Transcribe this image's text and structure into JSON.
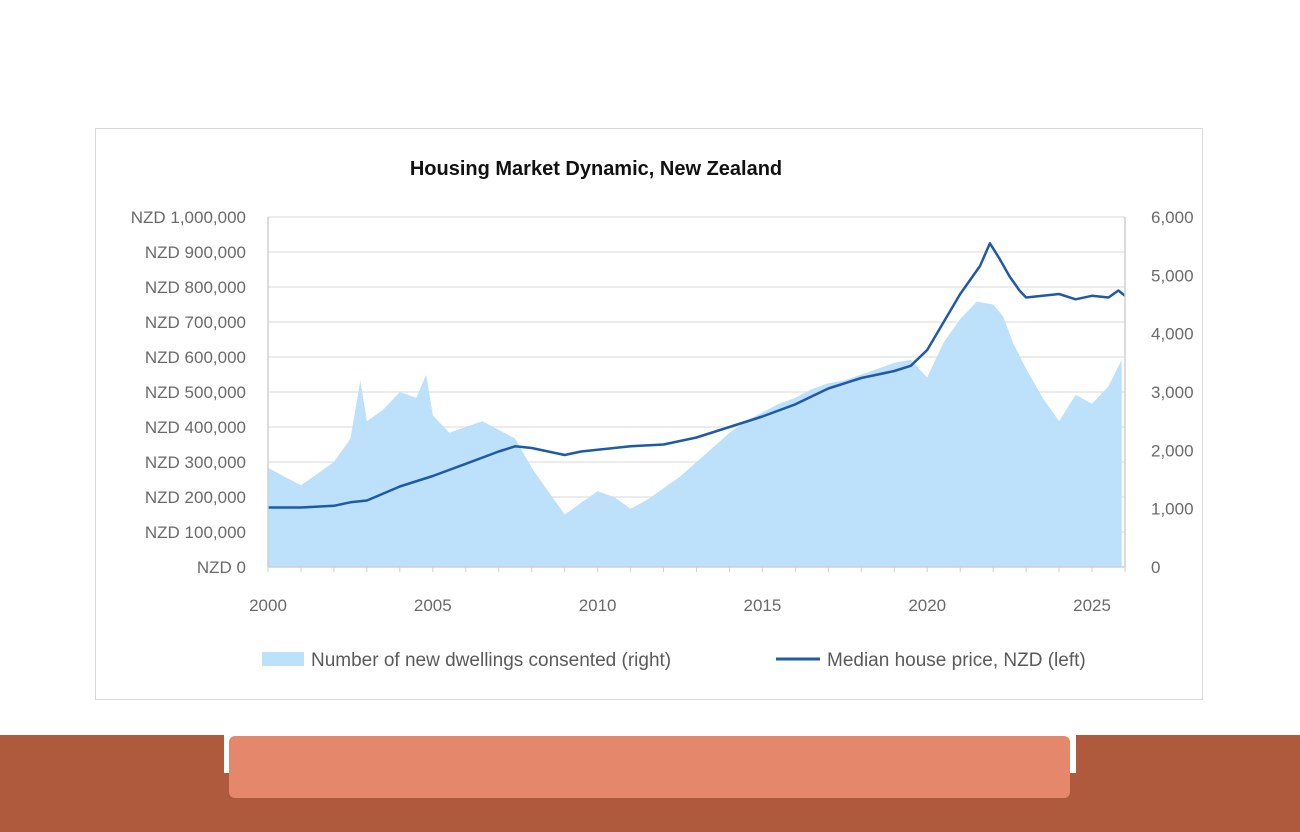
{
  "chart_data": {
    "type": "area+line",
    "title": "Housing Market Dynamic, New Zealand",
    "x_ticks": [
      "2000",
      "2005",
      "2010",
      "2015",
      "2020",
      "2025"
    ],
    "xlim": [
      2000,
      2026
    ],
    "y_left_ticks": [
      "NZD 0",
      "NZD 100,000",
      "NZD 200,000",
      "NZD 300,000",
      "NZD 400,000",
      "NZD 500,000",
      "NZD 600,000",
      "NZD 700,000",
      "NZD 800,000",
      "NZD 900,000",
      "NZD 1,000,000"
    ],
    "y_left_lim": [
      0,
      1000000
    ],
    "y_right_ticks": [
      "0",
      "1,000",
      "2,000",
      "3,000",
      "4,000",
      "5,000",
      "6,000"
    ],
    "y_right_lim": [
      0,
      6000
    ],
    "grid": true,
    "legend_position": "bottom",
    "series": [
      {
        "name": "Number of new dwellings consented (right)",
        "type": "area",
        "axis": "right",
        "color": "#bde0fb",
        "x": [
          2000,
          2000.5,
          2001,
          2001.5,
          2002,
          2002.5,
          2002.8,
          2003,
          2003.5,
          2004,
          2004.5,
          2004.8,
          2005,
          2005.5,
          2006,
          2006.5,
          2007,
          2007.5,
          2008,
          2008.5,
          2009,
          2009.5,
          2010,
          2010.5,
          2011,
          2011.5,
          2012,
          2012.5,
          2013,
          2013.5,
          2014,
          2014.5,
          2015,
          2015.5,
          2016,
          2016.5,
          2017,
          2017.5,
          2018,
          2018.5,
          2019,
          2019.5,
          2020,
          2020.5,
          2021,
          2021.5,
          2022,
          2022.3,
          2022.6,
          2023,
          2023.5,
          2024,
          2024.5,
          2025,
          2025.5,
          2025.9
        ],
        "values": [
          1700,
          1550,
          1400,
          1600,
          1800,
          2200,
          3200,
          2500,
          2700,
          3000,
          2900,
          3300,
          2600,
          2300,
          2400,
          2500,
          2350,
          2200,
          1700,
          1300,
          900,
          1100,
          1300,
          1200,
          1000,
          1150,
          1350,
          1550,
          1800,
          2050,
          2300,
          2500,
          2650,
          2800,
          2900,
          3050,
          3150,
          3200,
          3300,
          3400,
          3500,
          3550,
          3250,
          3850,
          4250,
          4550,
          4500,
          4300,
          3850,
          3400,
          2900,
          2500,
          2950,
          2800,
          3100,
          3550
        ]
      },
      {
        "name": "Median house price, NZD (left)",
        "type": "line",
        "axis": "left",
        "color": "#1e5aa8",
        "x": [
          2000,
          2001,
          2002,
          2002.5,
          2003,
          2003.5,
          2004,
          2005,
          2006,
          2007,
          2007.5,
          2008,
          2009,
          2009.5,
          2010,
          2011,
          2012,
          2013,
          2014,
          2015,
          2016,
          2017,
          2018,
          2019,
          2019.5,
          2020,
          2020.5,
          2021,
          2021.3,
          2021.6,
          2021.9,
          2022.2,
          2022.5,
          2022.8,
          2023,
          2023.5,
          2024,
          2024.5,
          2025,
          2025.5,
          2025.8,
          2026
        ],
        "values": [
          170000,
          170000,
          175000,
          185000,
          190000,
          210000,
          230000,
          260000,
          295000,
          330000,
          345000,
          340000,
          320000,
          330000,
          335000,
          345000,
          350000,
          370000,
          400000,
          430000,
          465000,
          510000,
          540000,
          560000,
          575000,
          620000,
          700000,
          780000,
          820000,
          860000,
          925000,
          880000,
          830000,
          790000,
          770000,
          775000,
          780000,
          765000,
          775000,
          770000,
          790000,
          775000
        ]
      }
    ]
  },
  "colors": {
    "area": "#bde0fb",
    "line": "#1e5aa8",
    "footer_band": "#b05a3d",
    "footer_bar": "#e5876b"
  }
}
